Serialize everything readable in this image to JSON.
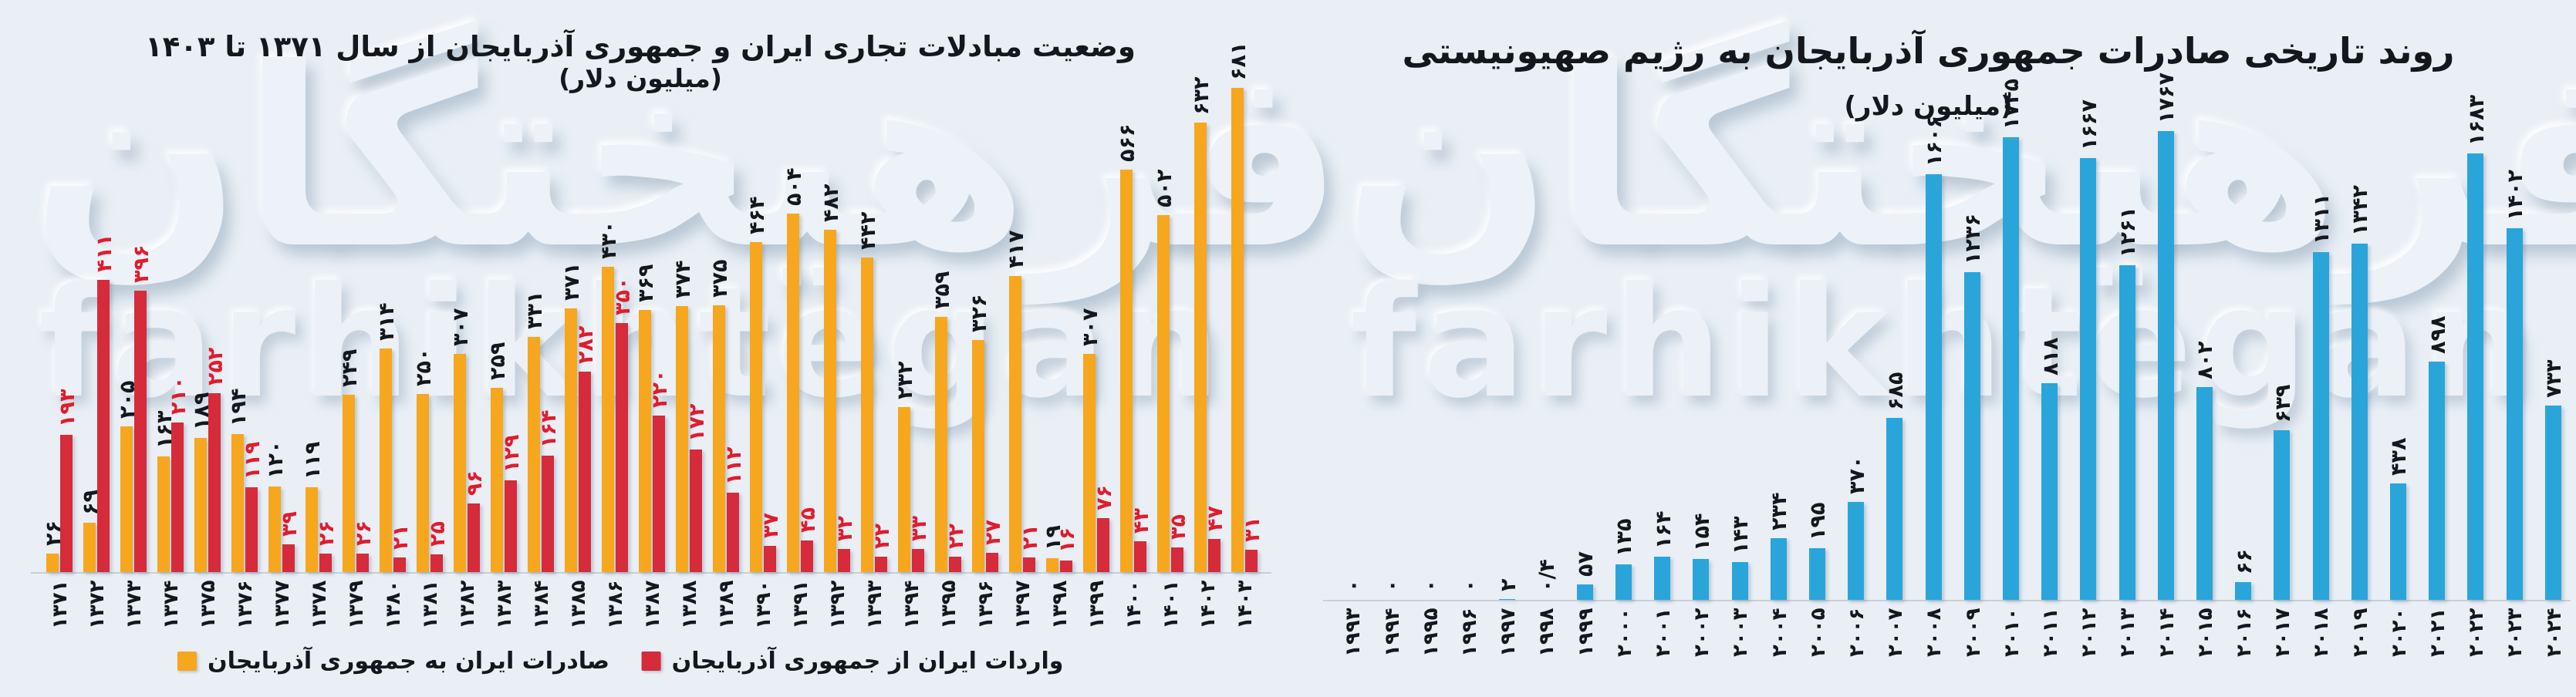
{
  "page": {
    "background_color": "#e9eff5",
    "watermark_fa": "فرهیختگان",
    "watermark_en": "farhikhtegan"
  },
  "colors": {
    "exports_bar": "#f6a71e",
    "imports_bar": "#d52b3a",
    "imports_label": "#e01c2d",
    "blue_bar": "#2aa5da",
    "text": "#14181d"
  },
  "chart_data": [
    {
      "type": "bar",
      "title": "وضعیت مبادلات تجاری ایران و جمهوری آذربایجان از سال ۱۳۷۱ تا ۱۴۰۳",
      "subtitle": "(میلیون دلار)",
      "unit": "میلیون دلار",
      "xlabel": "",
      "ylabel": "",
      "grid": false,
      "legend_position": "bottom",
      "value_labels": "rotated-90-above-bars",
      "categories": [
        1371,
        1372,
        1373,
        1374,
        1375,
        1376,
        1377,
        1378,
        1379,
        1380,
        1381,
        1382,
        1383,
        1384,
        1385,
        1386,
        1387,
        1388,
        1389,
        1390,
        1391,
        1392,
        1393,
        1394,
        1395,
        1396,
        1397,
        1398,
        1399,
        1400,
        1401,
        1402,
        1403
      ],
      "ylim": [
        0,
        740
      ],
      "series": [
        {
          "name": "صادرات ایران به جمهوری آذربایجان",
          "color": "#f6a71e",
          "label_color": "#14181d",
          "values": [
            26,
            69,
            205,
            163,
            189,
            194,
            120,
            119,
            249,
            314,
            250,
            307,
            259,
            331,
            371,
            430,
            369,
            374,
            375,
            464,
            504,
            482,
            442,
            232,
            359,
            326,
            417,
            19,
            307,
            566,
            502,
            632,
            681
          ]
        },
        {
          "name": "واردات ایران از جمهوری آذربایجان",
          "color": "#d52b3a",
          "label_color": "#e01c2d",
          "values": [
            193,
            411,
            396,
            210,
            252,
            119,
            39,
            26,
            26,
            21,
            25,
            96,
            129,
            164,
            282,
            350,
            220,
            172,
            112,
            37,
            45,
            32,
            22,
            33,
            22,
            27,
            21,
            16,
            76,
            43,
            35,
            47,
            31
          ]
        }
      ]
    },
    {
      "type": "bar",
      "title": "روند تاریخی صادرات جمهوری آذربایجان به رژیم صهیونیستی",
      "subtitle": "(میلیون دلار)",
      "unit": "میلیون دلار",
      "xlabel": "",
      "ylabel": "",
      "grid": false,
      "legend_position": "none",
      "value_labels": "rotated-90-above-bars",
      "categories": [
        1993,
        1994,
        1995,
        1996,
        1997,
        1998,
        1999,
        2000,
        2001,
        2002,
        2003,
        2004,
        2005,
        2006,
        2007,
        2008,
        2009,
        2010,
        2011,
        2012,
        2013,
        2014,
        2015,
        2016,
        2017,
        2018,
        2019,
        2020,
        2021,
        2022,
        2023,
        2024
      ],
      "ylim": [
        0,
        1800
      ],
      "series": [
        {
          "name": "صادرات جمهوری آذربایجان به رژیم صهیونیستی",
          "color": "#2aa5da",
          "label_color": "#14181d",
          "values": [
            0,
            0,
            0,
            0,
            2,
            0.4,
            57,
            135,
            164,
            154,
            143,
            234,
            195,
            370,
            685,
            1606,
            1236,
            1745,
            818,
            1667,
            1261,
            1767,
            802,
            66,
            639,
            1311,
            1342,
            438,
            898,
            1683,
            1402,
            733
          ]
        }
      ]
    }
  ]
}
